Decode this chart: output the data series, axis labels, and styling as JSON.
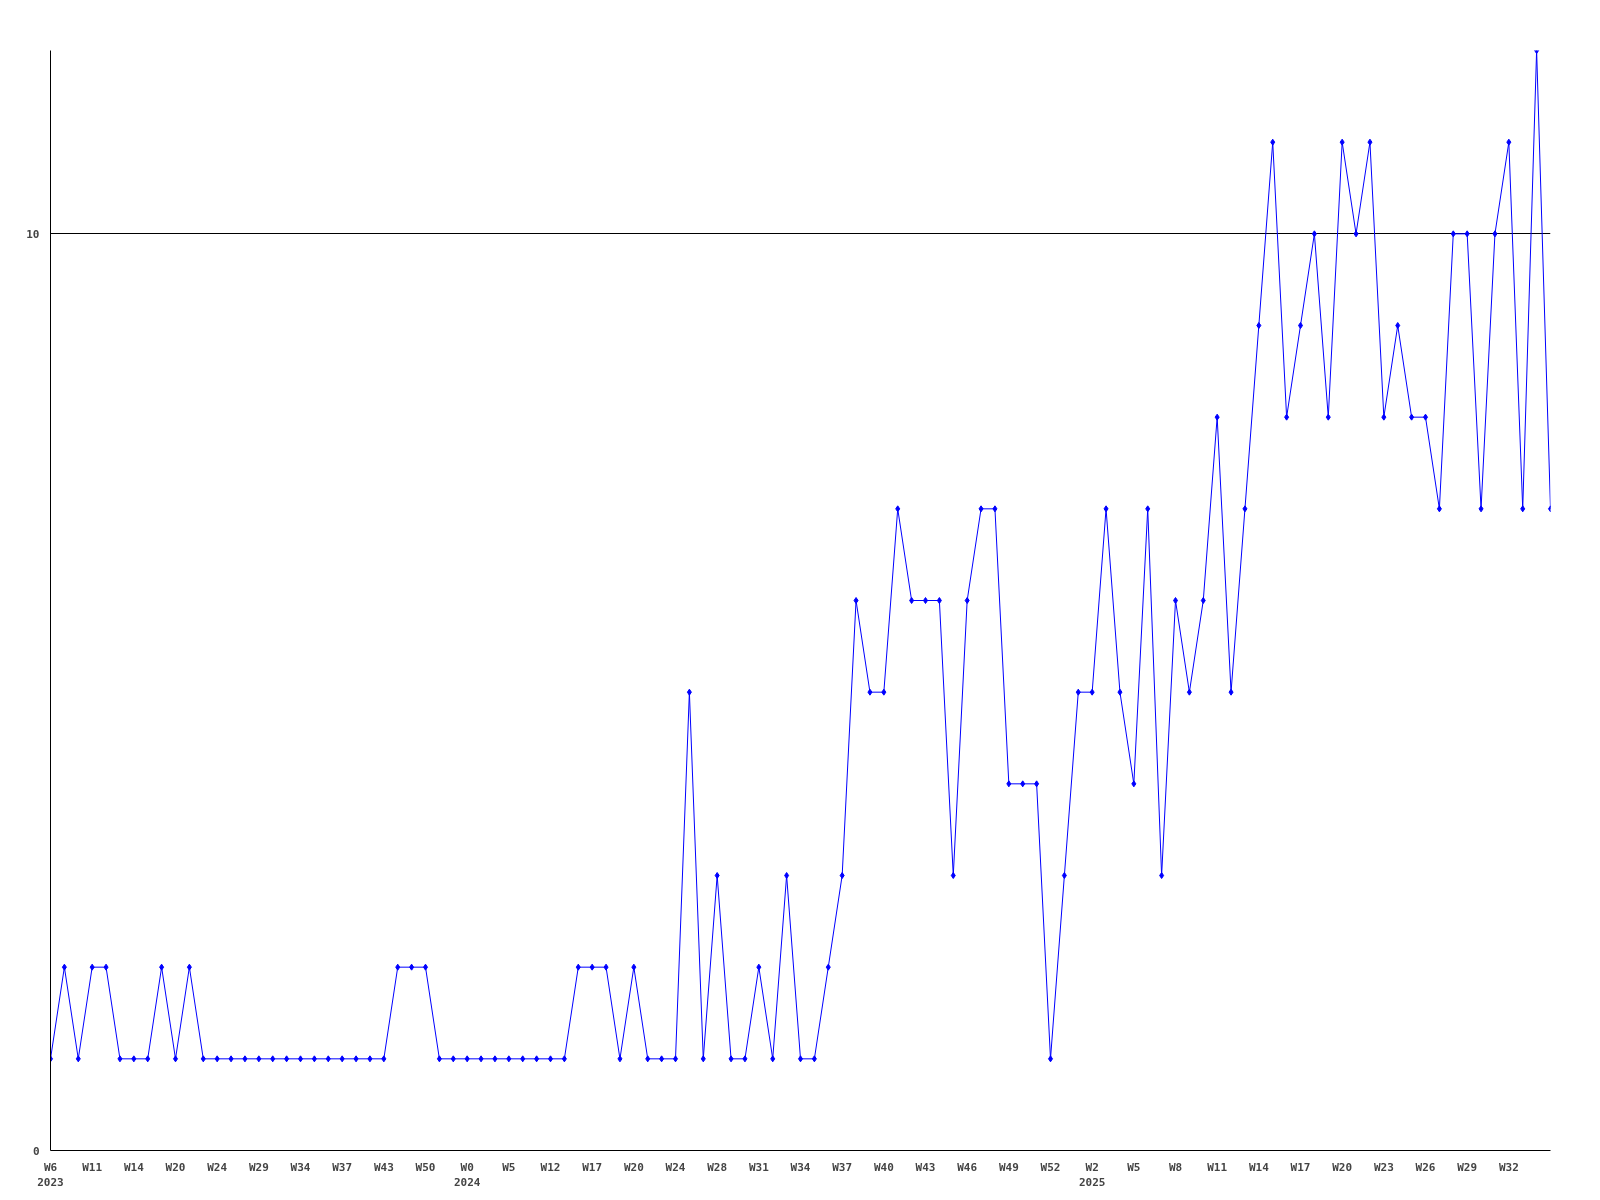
{
  "chart_data": {
    "type": "line",
    "categories": [
      "W6\n2023",
      null,
      null,
      "W11",
      null,
      null,
      "W14",
      null,
      null,
      "W20",
      null,
      null,
      "W24",
      null,
      null,
      "W29",
      null,
      null,
      "W34",
      null,
      null,
      "W37",
      null,
      null,
      "W43",
      null,
      null,
      "W50",
      null,
      null,
      "W0\n2024",
      null,
      null,
      "W5",
      null,
      null,
      "W12",
      null,
      null,
      "W17",
      null,
      null,
      "W20",
      null,
      null,
      "W24",
      null,
      null,
      "W28",
      null,
      null,
      "W31",
      null,
      null,
      "W34",
      null,
      null,
      "W37",
      null,
      null,
      "W40",
      null,
      null,
      "W43",
      null,
      null,
      "W46",
      null,
      null,
      "W49",
      null,
      null,
      "W52",
      null,
      null,
      "W2\n2025",
      null,
      null,
      "W5",
      null,
      null,
      "W8",
      null,
      null,
      "W11",
      null,
      null,
      "W14",
      null,
      null,
      "W17",
      null,
      null,
      "W20",
      null,
      null,
      "W23",
      null,
      null,
      "W26",
      null,
      null,
      "W29",
      null,
      null,
      "W32",
      null,
      null,
      null
    ],
    "series": [
      {
        "color": "#0000ff",
        "values": [
          1,
          2,
          1,
          2,
          2,
          1,
          1,
          1,
          2,
          1,
          2,
          1,
          1,
          1,
          1,
          1,
          1,
          1,
          1,
          1,
          1,
          1,
          1,
          1,
          1,
          2,
          2,
          2,
          1,
          1,
          1,
          1,
          1,
          1,
          1,
          1,
          1,
          1,
          2,
          2,
          2,
          1,
          2,
          1,
          1,
          1,
          5,
          1,
          3,
          1,
          1,
          2,
          1,
          3,
          1,
          1,
          2,
          3,
          6,
          5,
          5,
          7,
          6,
          6,
          6,
          3,
          6,
          7,
          7,
          4,
          4,
          4,
          1,
          3,
          5,
          5,
          7,
          5,
          4,
          7,
          3,
          6,
          5,
          6,
          8,
          5,
          7,
          9,
          11,
          8,
          9,
          10,
          8,
          11,
          10,
          11,
          8,
          9,
          8,
          8,
          7,
          10,
          10,
          7,
          10,
          11,
          7,
          12,
          7
        ]
      }
    ],
    "ylim": [
      0,
      12
    ],
    "yticks": [
      0,
      10
    ],
    "grid": "y",
    "marker": "diamond",
    "line_style": "solid"
  }
}
